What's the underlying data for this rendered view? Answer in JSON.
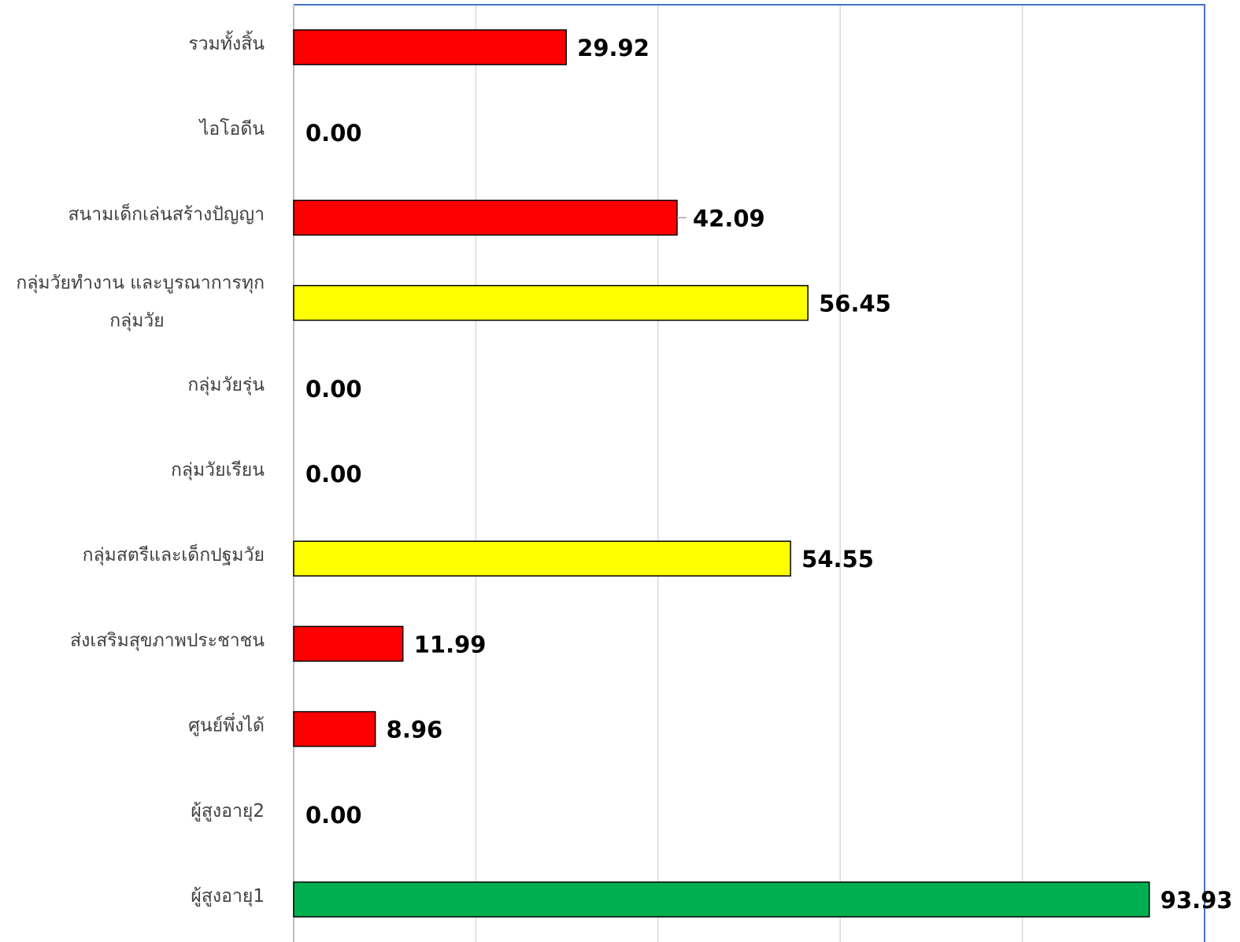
{
  "chart_data": {
    "type": "bar",
    "orientation": "horizontal",
    "categories": [
      "รวมทั้งสิ้น",
      "ไอโอดีน",
      "สนามเด็กเล่นสร้างปัญญา",
      "กลุ่มวัยทำงาน และบูรณาการทุกกลุ่มวัย",
      "กลุ่มวัยรุ่น",
      "กลุ่มวัยเรียน",
      "กลุ่มสตรีและเด็กปฐมวัย",
      "ส่งเสริมสุขภาพประชาชน",
      "ศูนย์พึ่งได้",
      "ผู้สูงอายุ2",
      "ผู้สูงอายุ1"
    ],
    "values": [
      29.92,
      0.0,
      42.09,
      56.45,
      0.0,
      0.0,
      54.55,
      11.99,
      8.96,
      0.0,
      93.93
    ],
    "value_labels": [
      "29.92",
      "0.00",
      "42.09",
      "56.45",
      "0.00",
      "0.00",
      "54.55",
      "11.99",
      "8.96",
      "0.00",
      "93.93"
    ],
    "bar_colors": [
      "#ff0000",
      "#ff0000",
      "#ff0000",
      "#ffff00",
      "#ff0000",
      "#ff0000",
      "#ffff00",
      "#ff0000",
      "#ff0000",
      "#ff0000",
      "#00b050"
    ],
    "xlim": [
      0,
      100
    ],
    "xtick_step": 20,
    "grid": true,
    "title": "",
    "xlabel": "",
    "ylabel": ""
  }
}
